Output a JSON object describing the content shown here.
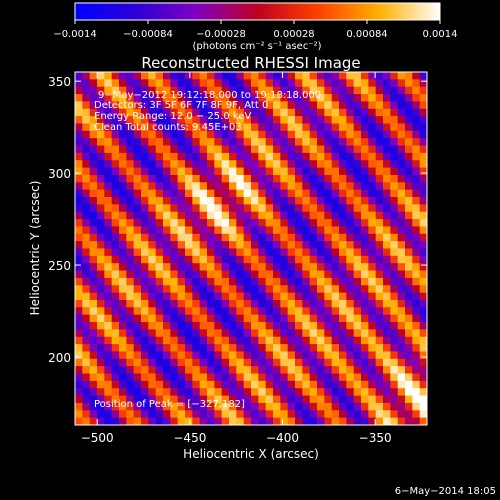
{
  "chart_data": {
    "type": "heatmap",
    "title": "Reconstructed RHESSI Image",
    "xlabel": "Heliocentric X (arcsec)",
    "ylabel": "Heliocentric Y (arcsec)",
    "xlim": [
      -512,
      -322
    ],
    "ylim": [
      163,
      355
    ],
    "x_ticks": [
      -500,
      -450,
      -400,
      -350
    ],
    "y_ticks": [
      200,
      250,
      300,
      350
    ],
    "colorbar": {
      "min": -0.0014,
      "max": 0.0014,
      "ticks": [
        -0.0014,
        -0.00084,
        -0.00028,
        0.00028,
        0.00084,
        0.0014
      ],
      "tick_labels": [
        "−0.0014",
        "−0.00084",
        "−0.00028",
        "0.00028",
        "0.00084",
        "0.0014"
      ],
      "unit_label": "(photons cm⁻² s⁻¹ asec⁻²)",
      "colors": [
        "#0000ff",
        "#2b00d8",
        "#8000c0",
        "#c00020",
        "#ff4000",
        "#ffb000",
        "#ffffff"
      ]
    },
    "annotations": [
      "9−May−2012 19:12:18.000 to 19:18:18.000",
      "Detectors: 3F 5F 6F 7F 8F 9F, Att 0",
      "Energy Range: 12.0 − 25.0 keV",
      "Clean    Total counts: 9.45E+03"
    ],
    "peak_label": "Position of Peak = [−327,182]",
    "peak": [
      -327,
      182
    ]
  },
  "footer": {
    "date": "6−May−2014 18:05"
  }
}
